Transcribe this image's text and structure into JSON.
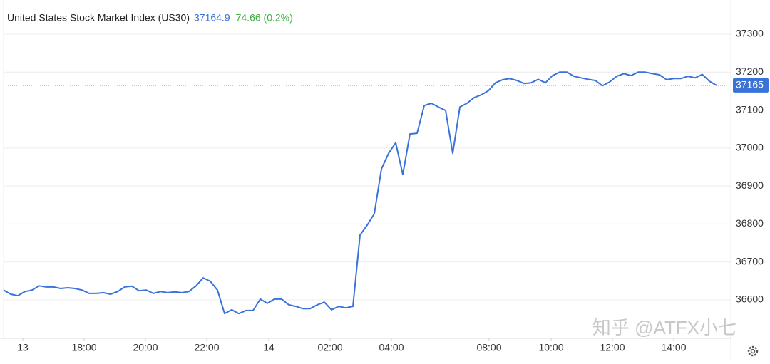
{
  "chart_data": {
    "type": "line",
    "title": "United States Stock Market Index (US30)",
    "price": 37164.9,
    "change_text": "74.66 (0.2%)",
    "current_value": 37165,
    "watermark": "知乎 @ATFX小七",
    "color": "#3a73d8",
    "grid": true,
    "xlim": [
      0,
      100
    ],
    "xticks": [
      {
        "value": 2.7,
        "label": "13"
      },
      {
        "value": 11.3,
        "label": "18:00"
      },
      {
        "value": 19.9,
        "label": "20:00"
      },
      {
        "value": 28.5,
        "label": "22:00"
      },
      {
        "value": 37.2,
        "label": "14"
      },
      {
        "value": 45.8,
        "label": "02:00"
      },
      {
        "value": 54.4,
        "label": "04:00"
      },
      {
        "value": 68.1,
        "label": "08:00"
      },
      {
        "value": 76.8,
        "label": "10:00"
      },
      {
        "value": 85.4,
        "label": "12:00"
      },
      {
        "value": 94.0,
        "label": "14:00"
      }
    ],
    "ylim": [
      36500,
      37375
    ],
    "yticks": [
      36600,
      36700,
      36800,
      36900,
      37000,
      37100,
      37200,
      37300
    ],
    "values": [
      36626,
      36615,
      36611,
      36622,
      36626,
      36637,
      36634,
      36634,
      36630,
      36632,
      36630,
      36626,
      36617,
      36617,
      36619,
      36615,
      36622,
      36634,
      36636,
      36624,
      36626,
      36617,
      36622,
      36619,
      36621,
      36619,
      36622,
      36637,
      36658,
      36649,
      36626,
      36564,
      36574,
      36564,
      36572,
      36572,
      36602,
      36591,
      36602,
      36602,
      36587,
      36583,
      36577,
      36577,
      36587,
      36594,
      36574,
      36583,
      36579,
      36583,
      36771,
      36797,
      36827,
      36945,
      36986,
      37014,
      36930,
      37037,
      37039,
      37112,
      37118,
      37108,
      37099,
      36986,
      37108,
      37118,
      37133,
      37140,
      37151,
      37172,
      37180,
      37183,
      37178,
      37170,
      37172,
      37181,
      37172,
      37191,
      37200,
      37200,
      37189,
      37185,
      37181,
      37178,
      37164,
      37174,
      37189,
      37196,
      37191,
      37200,
      37200,
      37196,
      37193,
      37180,
      37183,
      37183,
      37189,
      37185,
      37194,
      37176,
      37165
    ]
  }
}
